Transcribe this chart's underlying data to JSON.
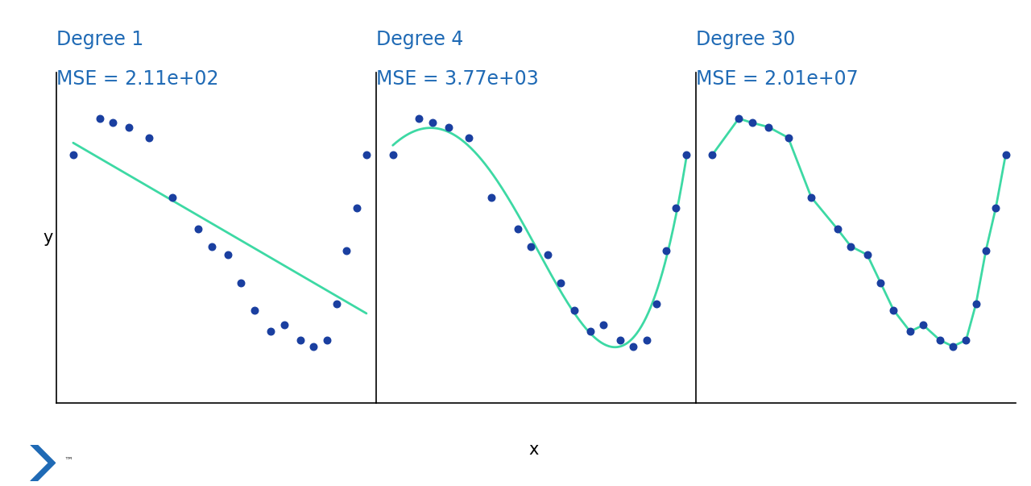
{
  "title_color": "#1f6ab5",
  "dot_color": "#1a3fa0",
  "line_color": "#3dd9a4",
  "background_color": "#ffffff",
  "panels": [
    {
      "title": "Degree 1",
      "mse_label": "MSE = 2.11e+02",
      "degree": 1
    },
    {
      "title": "Degree 4",
      "mse_label": "MSE = 3.77e+03",
      "degree": 4
    },
    {
      "title": "Degree 30",
      "mse_label": "MSE = 2.01e+07",
      "degree": 30
    }
  ],
  "xlabel": "x",
  "ylabel": "y",
  "title_fontsize": 17,
  "label_fontsize": 15,
  "dot_size": 38,
  "line_width": 2.0,
  "logo_color": "#1f6ab5"
}
